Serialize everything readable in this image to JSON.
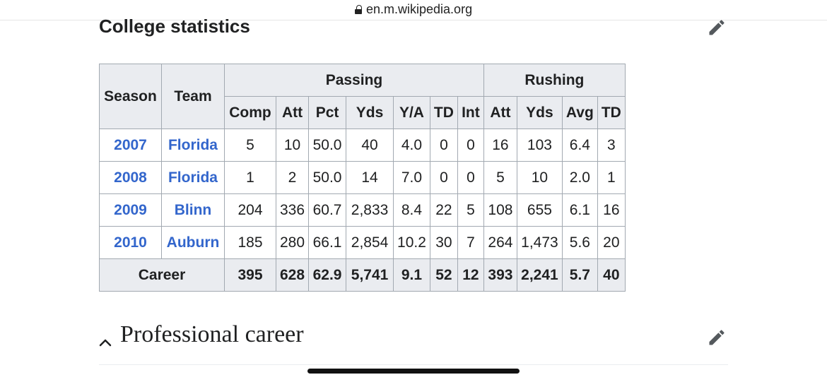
{
  "browser": {
    "url": "en.m.wikipedia.org"
  },
  "section": {
    "title": "College statistics"
  },
  "table": {
    "group_headers": {
      "season": "Season",
      "team": "Team",
      "passing": "Passing",
      "rushing": "Rushing"
    },
    "sub_headers": [
      "Comp",
      "Att",
      "Pct",
      "Yds",
      "Y/A",
      "TD",
      "Int",
      "Att",
      "Yds",
      "Avg",
      "TD"
    ],
    "rows": [
      {
        "season": "2007",
        "team": "Florida",
        "values": [
          "5",
          "10",
          "50.0",
          "40",
          "4.0",
          "0",
          "0",
          "16",
          "103",
          "6.4",
          "3"
        ]
      },
      {
        "season": "2008",
        "team": "Florida",
        "values": [
          "1",
          "2",
          "50.0",
          "14",
          "7.0",
          "0",
          "0",
          "5",
          "10",
          "2.0",
          "1"
        ]
      },
      {
        "season": "2009",
        "team": "Blinn",
        "values": [
          "204",
          "336",
          "60.7",
          "2,833",
          "8.4",
          "22",
          "5",
          "108",
          "655",
          "6.1",
          "16"
        ]
      },
      {
        "season": "2010",
        "team": "Auburn",
        "values": [
          "185",
          "280",
          "66.1",
          "2,854",
          "10.2",
          "30",
          "7",
          "264",
          "1,473",
          "5.6",
          "20"
        ]
      }
    ],
    "career": {
      "label": "Career",
      "values": [
        "395",
        "628",
        "62.9",
        "5,741",
        "9.1",
        "52",
        "12",
        "393",
        "2,241",
        "5.7",
        "40"
      ]
    }
  },
  "next_section": {
    "title": "Professional career"
  },
  "icons": {
    "edit": "pencil-icon",
    "collapse": "chevron-up-icon",
    "secure": "lock-icon"
  },
  "colors": {
    "link": "#3366cc",
    "header_bg": "#eaecf0",
    "border": "#a2a9b1"
  }
}
